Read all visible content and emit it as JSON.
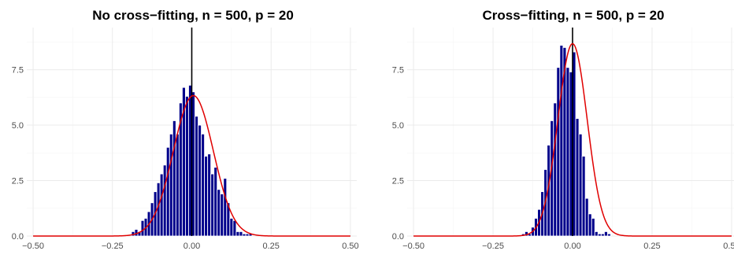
{
  "chart_data": [
    {
      "type": "bar",
      "title": "No cross−fitting, n = 500, p = 20",
      "xlabel": "",
      "ylabel": "",
      "xlim": [
        -0.52,
        0.52
      ],
      "ylim": [
        0,
        9.4
      ],
      "x_ticks": [
        -0.5,
        -0.25,
        0,
        0.25,
        0.5
      ],
      "x_tick_labels": [
        "−0.50",
        "−0.25",
        "0.00",
        "0.25",
        "0.50"
      ],
      "y_ticks": [
        0,
        2.5,
        5,
        7.5
      ],
      "y_tick_labels": [
        "0.0",
        "2.5",
        "5.0",
        "7.5"
      ],
      "grid": true,
      "vline_x": 0,
      "histogram": {
        "bin_width": 0.01,
        "bin_start": -0.19,
        "densities": [
          0.2,
          0.3,
          0.2,
          0.7,
          0.8,
          1.1,
          1.5,
          2.0,
          2.4,
          2.8,
          3.2,
          4.0,
          4.6,
          5.2,
          4.6,
          6.0,
          6.7,
          6.3,
          6.8,
          6.5,
          5.4,
          5.0,
          4.6,
          3.6,
          3.7,
          2.8,
          3.1,
          2.1,
          1.9,
          2.6,
          1.5,
          0.8,
          0.7,
          0.2,
          0.2,
          0.1,
          0.1,
          0.1
        ],
        "fill": "#00008b",
        "outline": "#ffffff"
      },
      "density_curve": {
        "distribution": "normal",
        "mean": 0.005,
        "sd": 0.063,
        "x_range": [
          -0.5,
          0.5
        ],
        "color": "#e00000"
      }
    },
    {
      "type": "bar",
      "title": "Cross−fitting, n = 500, p = 20",
      "xlabel": "",
      "ylabel": "",
      "xlim": [
        -0.52,
        0.52
      ],
      "ylim": [
        0,
        9.4
      ],
      "x_ticks": [
        -0.5,
        -0.25,
        0,
        0.25,
        0.5
      ],
      "x_tick_labels": [
        "−0.50",
        "−0.25",
        "0.00",
        "0.25",
        "0.50"
      ],
      "y_ticks": [
        0,
        2.5,
        5,
        7.5
      ],
      "y_tick_labels": [
        "0.0",
        "2.5",
        "5.0",
        "7.5"
      ],
      "grid": true,
      "vline_x": 0,
      "histogram": {
        "bin_width": 0.01,
        "bin_start": -0.16,
        "densities": [
          0.1,
          0.2,
          0.1,
          0.4,
          0.8,
          1.2,
          2.0,
          3.0,
          4.1,
          5.2,
          6.0,
          7.6,
          8.6,
          8.5,
          7.6,
          7.4,
          8.3,
          5.3,
          4.6,
          3.6,
          1.7,
          1.0,
          0.8,
          0.2,
          0.1,
          0.1,
          0.2,
          0.1
        ],
        "fill": "#00008b",
        "outline": "#ffffff"
      },
      "density_curve": {
        "distribution": "normal",
        "mean": 0.0,
        "sd": 0.046,
        "x_range": [
          -0.5,
          0.5
        ],
        "color": "#e00000"
      }
    }
  ]
}
